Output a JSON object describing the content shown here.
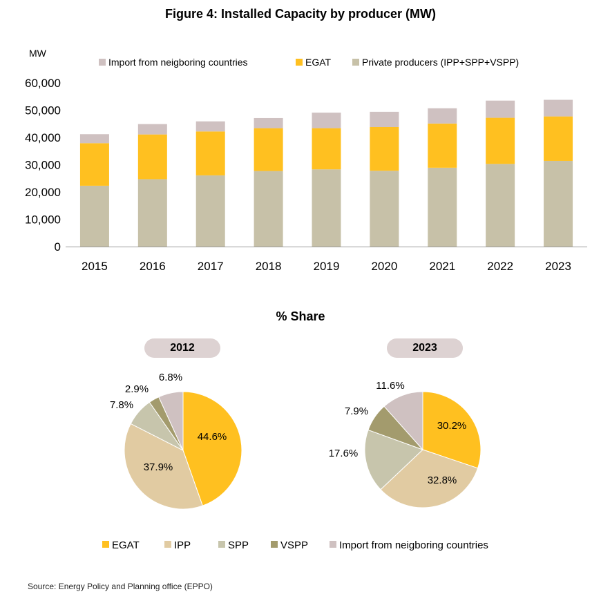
{
  "colors": {
    "import": "#cfc1c1",
    "egat": "#ffc020",
    "private": "#c7c1a8",
    "ipp": "#e1cba2",
    "spp": "#c7c5ac",
    "vspp": "#a39b6d"
  },
  "chart_data": [
    {
      "type": "bar",
      "stacked": true,
      "title": "Figure 4: Installed Capacity by producer (MW)",
      "ylabel": "MW",
      "xlabel": "",
      "ylim": [
        0,
        60000
      ],
      "yticks": [
        "0",
        "10,000",
        "20,000",
        "30,000",
        "40,000",
        "50,000",
        "60,000"
      ],
      "categories": [
        "2015",
        "2016",
        "2017",
        "2018",
        "2019",
        "2020",
        "2021",
        "2022",
        "2023"
      ],
      "legend_position": "top",
      "legend_order": [
        "Import from neigboring countries",
        "EGAT",
        "Private producers (IPP+SPP+VSPP)"
      ],
      "series": [
        {
          "name": "Private producers (IPP+SPP+VSPP)",
          "color_key": "private",
          "values": [
            22300,
            24700,
            26100,
            27700,
            28300,
            27800,
            28900,
            30300,
            31400
          ]
        },
        {
          "name": "EGAT",
          "color_key": "egat",
          "values": [
            15600,
            16400,
            16100,
            15700,
            15100,
            16000,
            16200,
            16900,
            16300
          ]
        },
        {
          "name": "Import from neigboring countries",
          "color_key": "import",
          "values": [
            3300,
            3800,
            3700,
            3700,
            5700,
            5600,
            5600,
            6300,
            6100
          ]
        }
      ]
    },
    {
      "type": "pie",
      "title": "2012",
      "slices": [
        {
          "name": "EGAT",
          "value": 44.6,
          "label": "44.6%",
          "color_key": "egat"
        },
        {
          "name": "IPP",
          "value": 37.9,
          "label": "37.9%",
          "color_key": "ipp"
        },
        {
          "name": "SPP",
          "value": 7.8,
          "label": "7.8%",
          "color_key": "spp"
        },
        {
          "name": "VSPP",
          "value": 2.9,
          "label": "2.9%",
          "color_key": "vspp"
        },
        {
          "name": "Import from neigboring countries",
          "value": 6.8,
          "label": "6.8%",
          "color_key": "import"
        }
      ]
    },
    {
      "type": "pie",
      "title": "2023",
      "slices": [
        {
          "name": "EGAT",
          "value": 30.2,
          "label": "30.2%",
          "color_key": "egat"
        },
        {
          "name": "IPP",
          "value": 32.8,
          "label": "32.8%",
          "color_key": "ipp"
        },
        {
          "name": "SPP",
          "value": 17.6,
          "label": "17.6%",
          "color_key": "spp"
        },
        {
          "name": "VSPP",
          "value": 7.9,
          "label": "7.9%",
          "color_key": "vspp"
        },
        {
          "name": "Import from neigboring countries",
          "value": 11.6,
          "label": "11.6%",
          "color_key": "import"
        }
      ]
    }
  ],
  "share_title": "% Share",
  "pie_legend": [
    "EGAT",
    "IPP",
    "SPP",
    "VSPP",
    "Import from neigboring countries"
  ],
  "source": "Source: Energy Policy and Planning office (EPPO)"
}
